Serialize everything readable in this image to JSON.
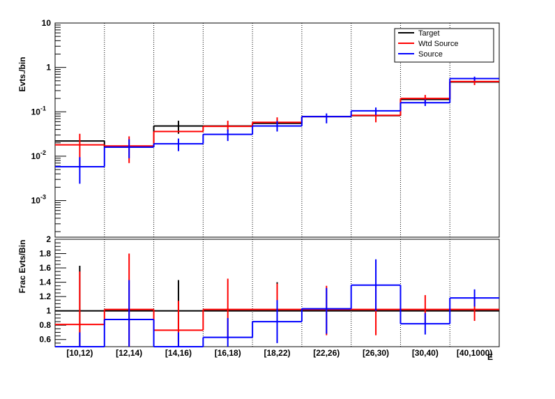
{
  "chart_data": [
    {
      "type": "line",
      "yscale": "log",
      "ylabel": "Evts./bin",
      "ylim": [
        0.00015,
        10
      ],
      "yticks": [
        {
          "value": 10,
          "base": "10",
          "exp": ""
        },
        {
          "value": 1,
          "base": "1",
          "exp": ""
        },
        {
          "value": 0.1,
          "base": "10",
          "exp": "-1"
        },
        {
          "value": 0.01,
          "base": "10",
          "exp": "-2"
        },
        {
          "value": 0.001,
          "base": "10",
          "exp": "-3"
        }
      ],
      "categories": [
        "[10,12)",
        "[12,14)",
        "[14,16)",
        "[16,18)",
        "[18,22)",
        "[22,26)",
        "[26,30)",
        "[30,40)",
        "[40,1000)"
      ],
      "legend": {
        "position": "top-right",
        "entries": [
          "Target",
          "Wtd Source",
          "Source"
        ]
      },
      "series": [
        {
          "name": "Target",
          "color": "#000000",
          "values": [
            0.022,
            0.016,
            0.048,
            0.048,
            0.055,
            0.078,
            0.082,
            0.19,
            0.47
          ],
          "err_low": [
            0.0,
            0.0,
            0.032,
            0.0,
            0.0,
            0.0,
            0.0,
            0.0,
            0.0
          ],
          "err_high": [
            0.0,
            0.0,
            0.063,
            0.0,
            0.0,
            0.0,
            0.0,
            0.0,
            0.0
          ]
        },
        {
          "name": "Wtd Source",
          "color": "#ff0000",
          "values": [
            0.018,
            0.017,
            0.036,
            0.047,
            0.058,
            0.078,
            0.083,
            0.2,
            0.48
          ],
          "err_low": [
            0.006,
            0.007,
            0.0,
            0.036,
            0.04,
            0.0,
            0.058,
            0.16,
            0.4
          ],
          "err_high": [
            0.032,
            0.028,
            0.0,
            0.063,
            0.075,
            0.0,
            0.11,
            0.24,
            0.57
          ]
        },
        {
          "name": "Source",
          "color": "#0000ff",
          "values": [
            0.0058,
            0.016,
            0.019,
            0.031,
            0.048,
            0.078,
            0.105,
            0.16,
            0.56
          ],
          "err_low": [
            0.0024,
            0.009,
            0.013,
            0.022,
            0.036,
            0.055,
            0.085,
            0.135,
            0.5
          ],
          "err_high": [
            0.0095,
            0.024,
            0.025,
            0.04,
            0.062,
            0.092,
            0.125,
            0.19,
            0.62
          ]
        }
      ]
    },
    {
      "type": "line",
      "ylabel": "Frac Evts/Bin",
      "xlabel": "E",
      "ylim": [
        0.5,
        2.0
      ],
      "yticks": [
        "2",
        "1.8",
        "1.6",
        "1.4",
        "1.2",
        "1",
        "0.8",
        "0.6"
      ],
      "categories": [
        "[10,12)",
        "[12,14)",
        "[14,16)",
        "[16,18)",
        "[18,22)",
        "[22,26)",
        "[26,30)",
        "[30,40)",
        "[40,1000)"
      ],
      "series": [
        {
          "name": "Target",
          "color": "#000000",
          "values": [
            1.0,
            1.0,
            1.0,
            1.0,
            1.0,
            1.0,
            1.0,
            1.0,
            1.0
          ],
          "err_low": [
            0.37,
            0.0,
            0.57,
            0.0,
            0.6,
            0.0,
            0.0,
            0.0,
            0.15
          ],
          "err_high": [
            1.63,
            0.0,
            1.43,
            0.0,
            1.4,
            0.0,
            0.0,
            0.0,
            0.0
          ]
        },
        {
          "name": "Wtd Source",
          "color": "#ff0000",
          "values": [
            0.81,
            1.02,
            0.73,
            1.02,
            1.02,
            1.02,
            1.02,
            1.02,
            1.02
          ],
          "err_low": [
            0.3,
            0.25,
            0.3,
            0.6,
            0.62,
            0.66,
            0.66,
            0.82,
            0.86
          ],
          "err_high": [
            1.55,
            1.8,
            1.14,
            1.45,
            1.38,
            1.35,
            1.36,
            1.22,
            1.18
          ]
        },
        {
          "name": "Source",
          "color": "#0000ff",
          "values": [
            0.5,
            0.88,
            0.5,
            0.63,
            0.85,
            1.03,
            1.36,
            0.82,
            1.18
          ],
          "err_low": [
            0.3,
            0.3,
            0.3,
            0.3,
            0.55,
            0.68,
            1.0,
            0.67,
            1.06
          ],
          "err_high": [
            0.7,
            1.43,
            0.7,
            0.9,
            1.15,
            1.32,
            1.72,
            0.97,
            1.3
          ]
        }
      ]
    }
  ]
}
